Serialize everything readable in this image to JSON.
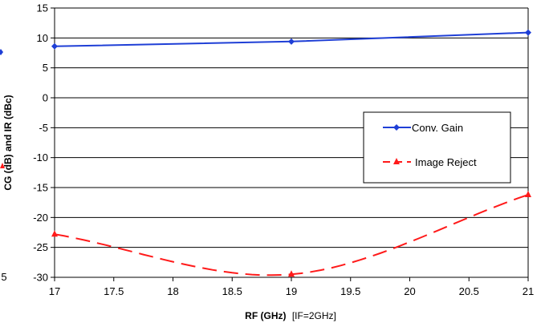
{
  "chart_data": {
    "type": "line",
    "xlabel": "RF (GHz)",
    "xlabel_suffix": "[IF=2GHz]",
    "ylabel": "CG (dB) and IR (dBc)",
    "xlim": [
      17,
      21
    ],
    "ylim": [
      -30,
      15
    ],
    "x_ticks": [
      "17",
      "17.5",
      "18",
      "18.5",
      "19",
      "19.5",
      "20",
      "20.5",
      "21"
    ],
    "y_ticks": [
      "15",
      "10",
      "5",
      "0",
      "-5",
      "-10",
      "-15",
      "-20",
      "-25",
      "-30"
    ],
    "partial_left_ticks": [
      "5"
    ],
    "grid": "horizontal",
    "legend_position": "right",
    "series": [
      {
        "name": "Conv. Gain",
        "color": "#1f3fd6",
        "marker": "diamond",
        "line_style": "solid",
        "x": [
          17,
          19,
          21
        ],
        "y": [
          8.6,
          9.4,
          10.9
        ]
      },
      {
        "name": "Image Reject",
        "color": "#ff1a1a",
        "marker": "triangle",
        "line_style": "dashed",
        "x": [
          17,
          19,
          21
        ],
        "y": [
          -22.8,
          -29.5,
          -16.2
        ]
      }
    ]
  }
}
